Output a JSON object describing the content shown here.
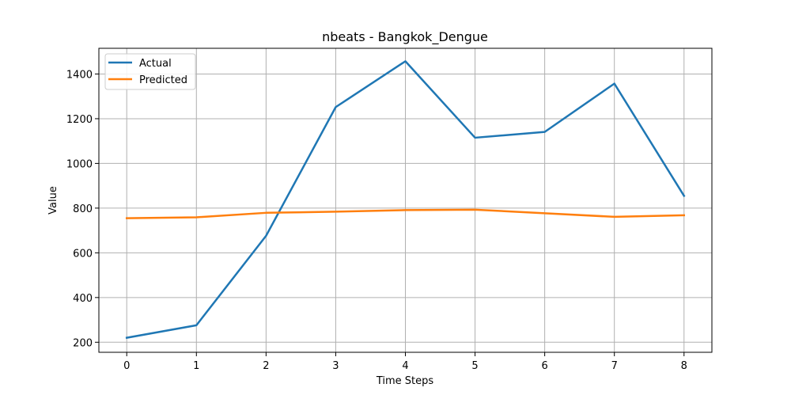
{
  "chart_data": {
    "type": "line",
    "title": "nbeats - Bangkok_Dengue",
    "xlabel": "Time Steps",
    "ylabel": "Value",
    "x": [
      0,
      1,
      2,
      3,
      4,
      5,
      6,
      7,
      8
    ],
    "xlim": [
      -0.4,
      8.4
    ],
    "ylim": [
      155,
      1515
    ],
    "xticks": [
      0,
      1,
      2,
      3,
      4,
      5,
      6,
      7,
      8
    ],
    "yticks": [
      200,
      400,
      600,
      800,
      1000,
      1200,
      1400
    ],
    "grid": true,
    "legend_position": "upper-left",
    "series": [
      {
        "name": "Actual",
        "color": "#1f77b4",
        "values": [
          220,
          276,
          676,
          1252,
          1457,
          1115,
          1141,
          1357,
          855
        ]
      },
      {
        "name": "Predicted",
        "color": "#ff7f0e",
        "values": [
          755,
          759,
          779,
          784,
          791,
          793,
          777,
          761,
          768
        ]
      }
    ]
  }
}
